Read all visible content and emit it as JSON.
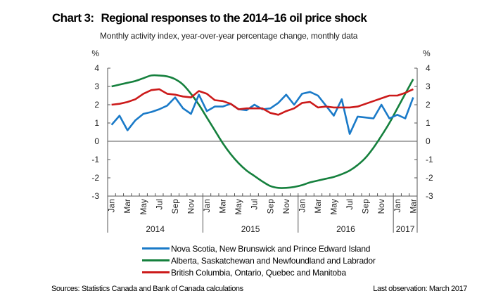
{
  "title": {
    "number": "Chart 3:",
    "text": "Regional responses to the 2014–16 oil price shock"
  },
  "subtitle": "Monthly activity index, year-over-year percentage change, monthly data",
  "source": "Sources: Statistics Canada and Bank of Canada calculations",
  "last_observation": "Last observation: March 2017",
  "chart_data": {
    "type": "line",
    "title": "Regional responses to the 2014–16 oil price shock",
    "subtitle": "Monthly activity index, year-over-year percentage change, monthly data",
    "ylabel_left": "%",
    "ylabel_right": "%",
    "ylim": [
      -3,
      4
    ],
    "yticks": [
      4,
      3,
      2,
      1,
      0,
      -1,
      -2,
      -3
    ],
    "zero_line": true,
    "grid": false,
    "legend_position": "bottom",
    "x": [
      "2014-01",
      "2014-02",
      "2014-03",
      "2014-04",
      "2014-05",
      "2014-06",
      "2014-07",
      "2014-08",
      "2014-09",
      "2014-10",
      "2014-11",
      "2014-12",
      "2015-01",
      "2015-02",
      "2015-03",
      "2015-04",
      "2015-05",
      "2015-06",
      "2015-07",
      "2015-08",
      "2015-09",
      "2015-10",
      "2015-11",
      "2015-12",
      "2016-01",
      "2016-02",
      "2016-03",
      "2016-04",
      "2016-05",
      "2016-06",
      "2016-07",
      "2016-08",
      "2016-09",
      "2016-10",
      "2016-11",
      "2016-12",
      "2017-01",
      "2017-02",
      "2017-03"
    ],
    "month_tick_labels": [
      "Jan",
      "Mar",
      "May",
      "Jul",
      "Sep",
      "Nov",
      "Jan",
      "Mar",
      "May",
      "Jul",
      "Sep",
      "Nov",
      "Jan",
      "Mar",
      "May",
      "Jul",
      "Sep",
      "Nov",
      "Jan",
      "Mar"
    ],
    "year_labels": [
      {
        "label": "2014",
        "months": 12
      },
      {
        "label": "2015",
        "months": 12
      },
      {
        "label": "2016",
        "months": 12
      },
      {
        "label": "2017",
        "months": 3
      }
    ],
    "series": [
      {
        "name": "Nova Scotia, New Brunswick and Prince Edward Island",
        "color": "#1a7ac8",
        "values": [
          0.9,
          1.4,
          0.6,
          1.15,
          1.5,
          1.6,
          1.75,
          1.95,
          2.4,
          1.8,
          1.5,
          2.55,
          1.65,
          1.9,
          1.9,
          2.05,
          1.75,
          1.7,
          2.0,
          1.75,
          1.8,
          2.1,
          2.55,
          2.0,
          2.6,
          2.7,
          2.5,
          1.95,
          1.4,
          2.3,
          0.4,
          1.35,
          1.3,
          1.25,
          2.0,
          1.25,
          1.45,
          1.25,
          2.4
        ]
      },
      {
        "name": "Alberta, Saskatchewan and Newfoundland and Labrador",
        "color": "#15803d",
        "values": [
          3.0,
          3.1,
          3.2,
          3.3,
          3.45,
          3.6,
          3.6,
          3.55,
          3.4,
          3.1,
          2.6,
          2.0,
          1.3,
          0.6,
          -0.1,
          -0.7,
          -1.2,
          -1.6,
          -1.9,
          -2.2,
          -2.45,
          -2.55,
          -2.55,
          -2.5,
          -2.4,
          -2.25,
          -2.15,
          -2.05,
          -1.95,
          -1.8,
          -1.6,
          -1.3,
          -0.9,
          -0.35,
          0.3,
          1.0,
          1.8,
          2.6,
          3.4
        ]
      },
      {
        "name": "British Columbia, Ontario, Quebec and Manitoba",
        "color": "#cc1a1a",
        "values": [
          2.0,
          2.05,
          2.15,
          2.3,
          2.6,
          2.8,
          2.85,
          2.6,
          2.55,
          2.45,
          2.4,
          2.75,
          2.6,
          2.25,
          2.2,
          2.05,
          1.75,
          1.8,
          1.8,
          1.8,
          1.55,
          1.45,
          1.65,
          1.8,
          2.1,
          2.15,
          1.85,
          1.9,
          1.85,
          1.85,
          1.85,
          1.9,
          2.05,
          2.2,
          2.35,
          2.5,
          2.5,
          2.65,
          2.85
        ]
      }
    ]
  }
}
